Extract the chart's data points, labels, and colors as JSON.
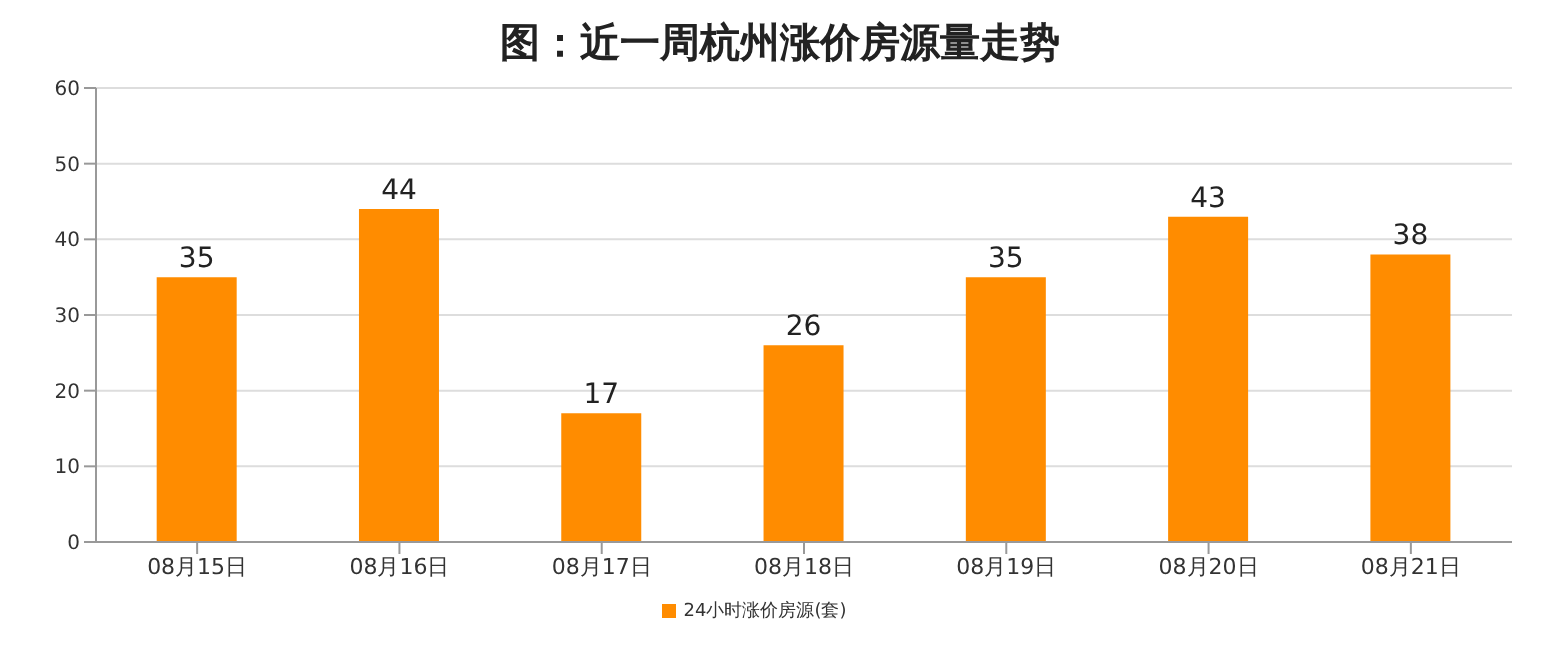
{
  "chart_data": {
    "type": "bar",
    "title": "图：近一周杭州涨价房源量走势",
    "categories": [
      "08月15日",
      "08月16日",
      "08月17日",
      "08月18日",
      "08月19日",
      "08月20日",
      "08月21日"
    ],
    "series": [
      {
        "name": "24小时涨价房源(套)",
        "color": "#ff8c00",
        "values": [
          35,
          44,
          17,
          26,
          35,
          43,
          38
        ]
      }
    ],
    "ylim": [
      0,
      60
    ],
    "yticks": [
      0,
      10,
      20,
      30,
      40,
      50,
      60
    ],
    "grid": "y",
    "legend": "bottom",
    "data_labels": true
  }
}
